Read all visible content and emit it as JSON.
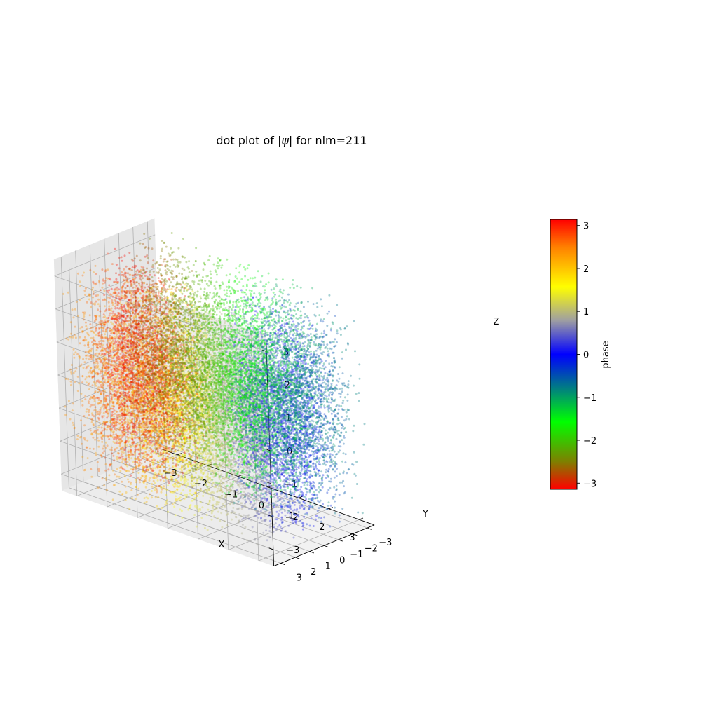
{
  "chart_data": {
    "type": "scatter",
    "projection": "3d",
    "title_prefix": "dot plot of |",
    "title_psi": "ψ",
    "title_suffix": "| for nlm=211",
    "xlabel": "X",
    "ylabel": "Y",
    "zlabel": "Z",
    "xlim": [
      -3.5,
      3.5
    ],
    "ylim": [
      -3.5,
      3.5
    ],
    "zlim": [
      -3.5,
      3.5
    ],
    "xticks": [
      -3,
      -2,
      -1,
      0,
      1,
      2,
      3
    ],
    "yticks": [
      -3,
      -2,
      -1,
      0,
      1,
      2,
      3
    ],
    "zticks": [
      -3,
      -2,
      -1,
      0,
      1,
      2,
      3
    ],
    "tick_labels": [
      "−3",
      "−2",
      "−1",
      "0",
      "1",
      "2",
      "3"
    ],
    "grid": true,
    "point_count": 20000,
    "wavefunction": "n=2, l=1, m=1",
    "marker_size": 1.5,
    "marker_alpha": 0.35,
    "colorbar": {
      "label": "phase",
      "range": [
        -3.14159,
        3.14159
      ],
      "ticks": [
        -3,
        -2,
        -1,
        0,
        1,
        2,
        3
      ],
      "tick_labels": [
        "−3",
        "−2",
        "−1",
        "0",
        "1",
        "2",
        "3"
      ],
      "colors": [
        {
          "phase": -3.14159,
          "color": "#ff0000"
        },
        {
          "phase": -2.5,
          "color": "#7f7f00"
        },
        {
          "phase": -1.57,
          "color": "#00ff00"
        },
        {
          "phase": -0.8,
          "color": "#008080"
        },
        {
          "phase": 0.0,
          "color": "#0000ff"
        },
        {
          "phase": 0.8,
          "color": "#a0a0a0"
        },
        {
          "phase": 1.57,
          "color": "#ffff00"
        },
        {
          "phase": 2.5,
          "color": "#ff8000"
        },
        {
          "phase": 3.14159,
          "color": "#ff0000"
        }
      ]
    },
    "pane_color": "#f2f2f2",
    "grid_color": "#b0b0b0"
  }
}
